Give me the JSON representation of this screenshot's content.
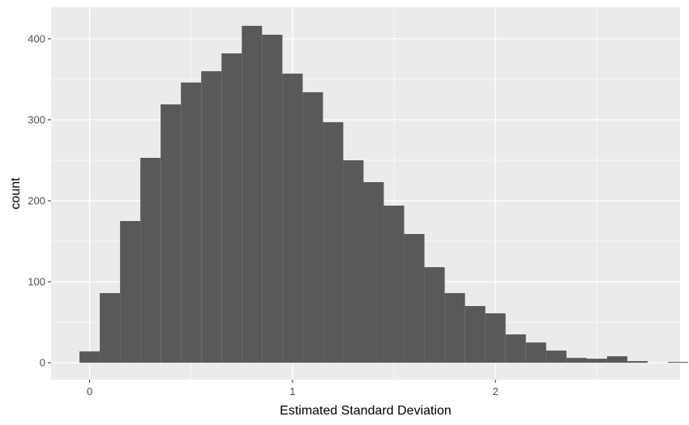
{
  "chart_data": {
    "type": "bar",
    "xlabel": "Estimated Standard Deviation",
    "ylabel": "count",
    "xlim": [
      -0.19,
      2.91
    ],
    "ylim": [
      -20.9,
      438.9
    ],
    "x_ticks": [
      0,
      1,
      2
    ],
    "x_tick_labels": [
      "0",
      "1",
      "2"
    ],
    "y_ticks": [
      0,
      100,
      200,
      300,
      400
    ],
    "y_tick_labels": [
      "0",
      "100",
      "200",
      "300",
      "400"
    ],
    "x_minor_ticks": [
      0.5,
      1.5,
      2.5
    ],
    "y_minor_ticks": [
      50,
      150,
      250,
      350
    ],
    "grid": true,
    "bar_color": "#595959",
    "panel_color": "#ebebeb",
    "grid_color": "#ffffff",
    "bins": [
      {
        "x0": -0.05,
        "x1": 0.05,
        "count": 14
      },
      {
        "x0": 0.05,
        "x1": 0.15,
        "count": 86
      },
      {
        "x0": 0.15,
        "x1": 0.25,
        "count": 175
      },
      {
        "x0": 0.25,
        "x1": 0.35,
        "count": 253
      },
      {
        "x0": 0.35,
        "x1": 0.45,
        "count": 319
      },
      {
        "x0": 0.45,
        "x1": 0.55,
        "count": 346
      },
      {
        "x0": 0.55,
        "x1": 0.65,
        "count": 360
      },
      {
        "x0": 0.65,
        "x1": 0.75,
        "count": 382
      },
      {
        "x0": 0.75,
        "x1": 0.85,
        "count": 416
      },
      {
        "x0": 0.85,
        "x1": 0.95,
        "count": 405
      },
      {
        "x0": 0.95,
        "x1": 1.05,
        "count": 357
      },
      {
        "x0": 1.05,
        "x1": 1.15,
        "count": 334
      },
      {
        "x0": 1.15,
        "x1": 1.25,
        "count": 297
      },
      {
        "x0": 1.25,
        "x1": 1.35,
        "count": 250
      },
      {
        "x0": 1.35,
        "x1": 1.45,
        "count": 223
      },
      {
        "x0": 1.45,
        "x1": 1.55,
        "count": 194
      },
      {
        "x0": 1.55,
        "x1": 1.65,
        "count": 159
      },
      {
        "x0": 1.65,
        "x1": 1.75,
        "count": 118
      },
      {
        "x0": 1.75,
        "x1": 1.85,
        "count": 86
      },
      {
        "x0": 1.85,
        "x1": 1.95,
        "count": 70
      },
      {
        "x0": 1.95,
        "x1": 2.05,
        "count": 61
      },
      {
        "x0": 2.05,
        "x1": 2.15,
        "count": 35
      },
      {
        "x0": 2.15,
        "x1": 2.25,
        "count": 25
      },
      {
        "x0": 2.25,
        "x1": 2.35,
        "count": 15
      },
      {
        "x0": 2.35,
        "x1": 2.45,
        "count": 6
      },
      {
        "x0": 2.45,
        "x1": 2.55,
        "count": 5
      },
      {
        "x0": 2.55,
        "x1": 2.65,
        "count": 8
      },
      {
        "x0": 2.65,
        "x1": 2.75,
        "count": 2
      },
      {
        "x0": 2.75,
        "x1": 2.85,
        "count": 0
      },
      {
        "x0": 2.85,
        "x1": 2.95,
        "count": 1
      }
    ]
  }
}
